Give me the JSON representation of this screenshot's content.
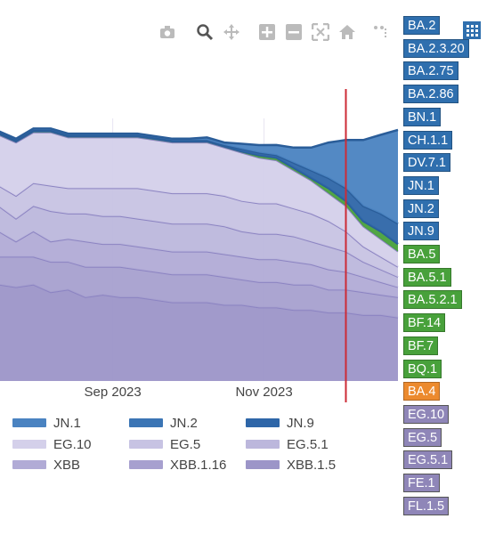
{
  "modebar": {
    "icons": [
      "camera-icon",
      "zoom-icon",
      "pan-icon",
      "zoom-in-icon",
      "zoom-out-icon",
      "autoscale-icon",
      "home-icon",
      "spike-icon"
    ]
  },
  "colors": {
    "blue_dark": "#2e66a8",
    "blue_mid": "#4a83c1",
    "blue_light": "#7ea9d8",
    "purple_light": "#d4d0ea",
    "purple_mid": "#b6b0d8",
    "purple_dark": "#9c95c8",
    "line": "#8c84c2",
    "red_marker": "#cc2b36",
    "green": "#48a13b"
  },
  "chart_data": {
    "type": "area",
    "stacked": true,
    "x_tick_labels": [
      "Sep 2023",
      "Nov 2023"
    ],
    "x": [
      "2023-06-26",
      "2023-07-03",
      "2023-07-10",
      "2023-07-17",
      "2023-07-24",
      "2023-07-31",
      "2023-08-07",
      "2023-08-14",
      "2023-08-21",
      "2023-08-28",
      "2023-09-04",
      "2023-09-11",
      "2023-09-18",
      "2023-09-25",
      "2023-10-02",
      "2023-10-09",
      "2023-10-16",
      "2023-10-23",
      "2023-10-30",
      "2023-11-06",
      "2023-11-13",
      "2023-11-20",
      "2023-11-27",
      "2023-12-04",
      "2023-12-11",
      "2023-12-18",
      "2023-12-25"
    ],
    "series": [
      {
        "name": "XBB.1.5",
        "values": [
          0.4,
          0.39,
          0.38,
          0.38,
          0.37,
          0.38,
          0.35,
          0.36,
          0.33,
          0.34,
          0.33,
          0.33,
          0.32,
          0.31,
          0.31,
          0.31,
          0.3,
          0.3,
          0.29,
          0.29,
          0.28,
          0.28,
          0.27,
          0.27,
          0.26,
          0.26,
          0.25
        ]
      },
      {
        "name": "XBB.1.16",
        "values": [
          0.12,
          0.12,
          0.12,
          0.11,
          0.12,
          0.11,
          0.12,
          0.11,
          0.12,
          0.11,
          0.12,
          0.11,
          0.11,
          0.11,
          0.11,
          0.11,
          0.11,
          0.1,
          0.1,
          0.1,
          0.1,
          0.1,
          0.09,
          0.09,
          0.09,
          0.08,
          0.08
        ]
      },
      {
        "name": "XBB",
        "values": [
          0.1,
          0.1,
          0.1,
          0.1,
          0.06,
          0.1,
          0.08,
          0.09,
          0.1,
          0.09,
          0.09,
          0.09,
          0.09,
          0.09,
          0.09,
          0.09,
          0.09,
          0.09,
          0.09,
          0.09,
          0.09,
          0.08,
          0.08,
          0.07,
          0.06,
          0.05,
          0.04
        ]
      },
      {
        "name": "EG.5.1",
        "values": [
          0.08,
          0.09,
          0.09,
          0.1,
          0.09,
          0.1,
          0.12,
          0.1,
          0.11,
          0.11,
          0.11,
          0.11,
          0.11,
          0.11,
          0.11,
          0.11,
          0.11,
          0.1,
          0.1,
          0.1,
          0.1,
          0.09,
          0.09,
          0.08,
          0.06,
          0.05,
          0.04
        ]
      },
      {
        "name": "EG.5",
        "values": [
          0.08,
          0.08,
          0.08,
          0.08,
          0.09,
          0.09,
          0.1,
          0.1,
          0.1,
          0.11,
          0.11,
          0.12,
          0.12,
          0.12,
          0.12,
          0.12,
          0.12,
          0.12,
          0.12,
          0.12,
          0.11,
          0.11,
          0.1,
          0.08,
          0.06,
          0.05,
          0.04
        ]
      },
      {
        "name": "EG.10",
        "values": [
          0.2,
          0.2,
          0.21,
          0.2,
          0.21,
          0.2,
          0.21,
          0.2,
          0.2,
          0.2,
          0.2,
          0.2,
          0.2,
          0.2,
          0.2,
          0.2,
          0.19,
          0.19,
          0.18,
          0.17,
          0.15,
          0.13,
          0.11,
          0.1,
          0.08,
          0.07,
          0.06
        ]
      },
      {
        "name": "JN.9",
        "values": [
          0.005,
          0.005,
          0.005,
          0.005,
          0.005,
          0.005,
          0.005,
          0.005,
          0.005,
          0.005,
          0.005,
          0.005,
          0.005,
          0.005,
          0.005,
          0.005,
          0.005,
          0.005,
          0.01,
          0.01,
          0.01,
          0.01,
          0.02,
          0.02,
          0.02,
          0.03,
          0.03
        ]
      },
      {
        "name": "JN.2",
        "values": [
          0.005,
          0.005,
          0.005,
          0.005,
          0.005,
          0.005,
          0.005,
          0.005,
          0.005,
          0.005,
          0.005,
          0.005,
          0.005,
          0.005,
          0.005,
          0.005,
          0.005,
          0.01,
          0.01,
          0.01,
          0.02,
          0.03,
          0.04,
          0.05,
          0.06,
          0.07,
          0.08
        ]
      },
      {
        "name": "JN.1",
        "values": [
          0.005,
          0.005,
          0.005,
          0.005,
          0.005,
          0.005,
          0.005,
          0.005,
          0.005,
          0.005,
          0.005,
          0.005,
          0.005,
          0.005,
          0.005,
          0.01,
          0.01,
          0.02,
          0.03,
          0.04,
          0.06,
          0.09,
          0.14,
          0.19,
          0.26,
          0.31,
          0.37
        ]
      }
    ],
    "legend": [
      "JN.1",
      "JN.2",
      "JN.9",
      "EG.10",
      "EG.5",
      "EG.5.1",
      "XBB",
      "XBB.1.16",
      "XBB.1.5"
    ],
    "legend_placement": "bottom",
    "vertical_marker": "2023-12-04",
    "grid": true
  },
  "variant_tags": [
    {
      "label": "BA.2",
      "group": "blue"
    },
    {
      "label": "BA.2.3.20",
      "group": "blue"
    },
    {
      "label": "BA.2.75",
      "group": "blue"
    },
    {
      "label": "BA.2.86",
      "group": "blue"
    },
    {
      "label": "BN.1",
      "group": "blue"
    },
    {
      "label": "CH.1.1",
      "group": "blue"
    },
    {
      "label": "DV.7.1",
      "group": "blue"
    },
    {
      "label": "JN.1",
      "group": "blue"
    },
    {
      "label": "JN.2",
      "group": "blue"
    },
    {
      "label": "JN.9",
      "group": "blue"
    },
    {
      "label": "BA.5",
      "group": "green"
    },
    {
      "label": "BA.5.1",
      "group": "green"
    },
    {
      "label": "BA.5.2.1",
      "group": "green"
    },
    {
      "label": "BF.14",
      "group": "green"
    },
    {
      "label": "BF.7",
      "group": "green"
    },
    {
      "label": "BQ.1",
      "group": "green"
    },
    {
      "label": "BA.4",
      "group": "orange"
    },
    {
      "label": "EG.10",
      "group": "purple"
    },
    {
      "label": "EG.5",
      "group": "purple"
    },
    {
      "label": "EG.5.1",
      "group": "purple"
    },
    {
      "label": "FE.1",
      "group": "purple"
    },
    {
      "label": "FL.1.5",
      "group": "purple"
    }
  ]
}
